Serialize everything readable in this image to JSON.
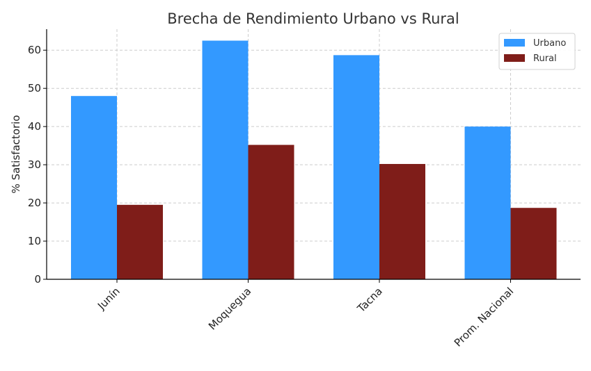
{
  "chart_data": {
    "type": "bar",
    "title": "Brecha de Rendimiento Urbano vs Rural",
    "xlabel": "",
    "ylabel": "% Satisfactorio",
    "categories": [
      "Junín",
      "Moquegua",
      "Tacna",
      "Prom. Nacional"
    ],
    "series": [
      {
        "name": "Urbano",
        "values": [
          48.0,
          62.5,
          58.7,
          40.0
        ],
        "color": "#3399ff"
      },
      {
        "name": "Rural",
        "values": [
          19.5,
          35.2,
          30.2,
          18.7
        ],
        "color": "#7f1d19"
      }
    ],
    "ylim": [
      0,
      65.5
    ],
    "yticks": [
      0,
      10,
      20,
      30,
      40,
      50,
      60
    ],
    "grid": true,
    "legend_position": "top-right"
  }
}
